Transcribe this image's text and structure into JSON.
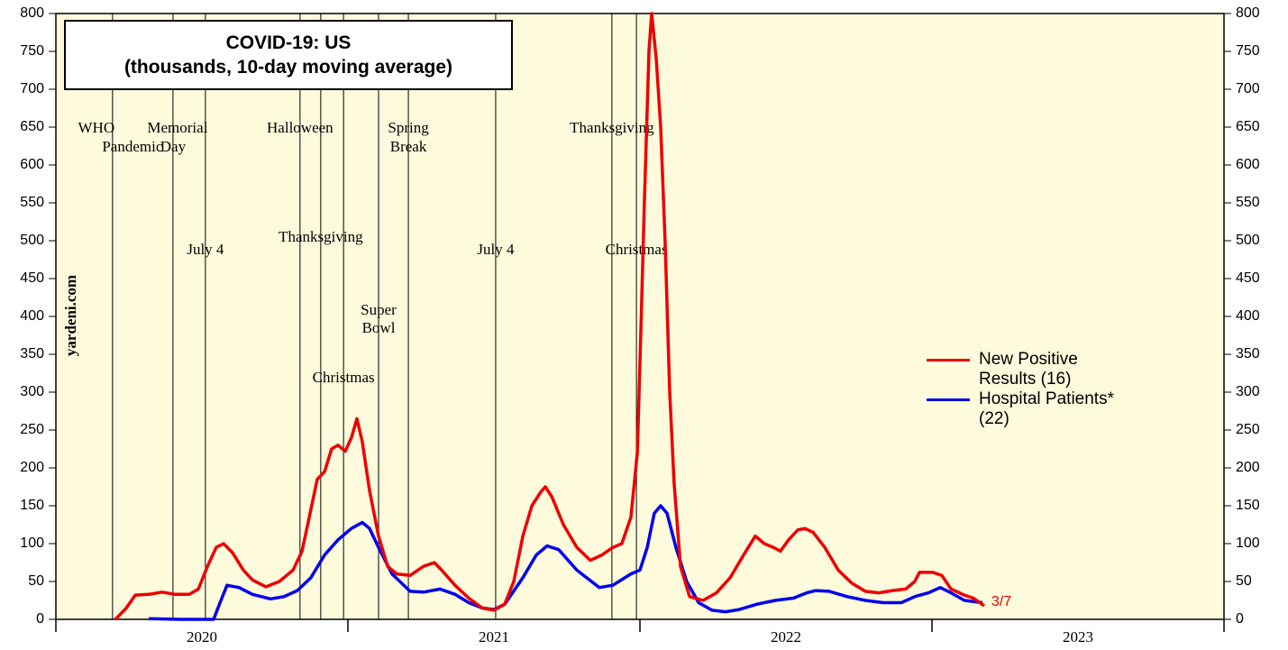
{
  "chart_data": {
    "type": "line",
    "title": "COVID-19: US",
    "subtitle": "(thousands, 10-day moving average)",
    "source": "yardeni.com",
    "end_label": "3/7",
    "xlim": [
      2020,
      2024
    ],
    "xticks": [
      2020,
      2021,
      2022,
      2023,
      2024
    ],
    "xtick_labels": [
      {
        "value": 2020.5,
        "label": "2020"
      },
      {
        "value": 2021.5,
        "label": "2021"
      },
      {
        "value": 2022.5,
        "label": "2022"
      },
      {
        "value": 2023.5,
        "label": "2023"
      }
    ],
    "ylim": [
      0,
      800
    ],
    "yticks": [
      0,
      50,
      100,
      150,
      200,
      250,
      300,
      350,
      400,
      450,
      500,
      550,
      600,
      650,
      700,
      750,
      800
    ],
    "background": "#fdfbdc",
    "events": [
      {
        "x": 2020.194,
        "label": [
          "WHO",
          "Pandemic"
        ]
      },
      {
        "x": 2020.401,
        "label": [
          "Memorial",
          "Day"
        ]
      },
      {
        "x": 2020.512,
        "label": [
          "July 4"
        ]
      },
      {
        "x": 2020.836,
        "label": [
          "Halloween"
        ]
      },
      {
        "x": 2020.907,
        "label": [
          "Thanksgiving"
        ]
      },
      {
        "x": 2020.985,
        "label": [
          "Christmas"
        ]
      },
      {
        "x": 2021.105,
        "label": [
          "Super",
          "Bowl"
        ]
      },
      {
        "x": 2021.207,
        "label": [
          "Spring",
          "Break"
        ]
      },
      {
        "x": 2021.506,
        "label": [
          "July 4"
        ]
      },
      {
        "x": 2021.904,
        "label": [
          "Thanksgiving"
        ]
      },
      {
        "x": 2021.988,
        "label": [
          "Christmas"
        ]
      }
    ],
    "series": [
      {
        "name": "New Positive Results (16)",
        "color": "#ee0000",
        "x": [
          2020.204,
          2020.241,
          2020.272,
          2020.318,
          2020.364,
          2020.41,
          2020.457,
          2020.488,
          2020.519,
          2020.549,
          2020.574,
          2020.605,
          2020.642,
          2020.673,
          2020.719,
          2020.765,
          2020.812,
          2020.843,
          2020.873,
          2020.895,
          2020.92,
          2020.944,
          2020.966,
          2020.991,
          2021.012,
          2021.031,
          2021.049,
          2021.074,
          2021.105,
          2021.136,
          2021.167,
          2021.213,
          2021.259,
          2021.296,
          2021.321,
          2021.367,
          2021.414,
          2021.46,
          2021.5,
          2021.537,
          2021.568,
          2021.599,
          2021.63,
          2021.66,
          2021.676,
          2021.698,
          2021.738,
          2021.784,
          2021.83,
          2021.87,
          2021.907,
          2021.938,
          2021.969,
          2021.991,
          2022.003,
          2022.015,
          2022.031,
          2022.04,
          2022.056,
          2022.071,
          2022.086,
          2022.102,
          2022.117,
          2022.139,
          2022.17,
          2022.216,
          2022.262,
          2022.309,
          2022.355,
          2022.395,
          2022.426,
          2022.457,
          2022.481,
          2022.509,
          2022.54,
          2022.565,
          2022.593,
          2022.633,
          2022.679,
          2022.725,
          2022.772,
          2022.818,
          2022.864,
          2022.91,
          2022.941,
          2022.957,
          2023.003,
          2023.034,
          2023.065,
          2023.111,
          2023.142,
          2023.179
        ],
        "values": [
          0,
          15,
          32,
          33,
          36,
          33,
          33,
          40,
          70,
          95,
          100,
          88,
          65,
          52,
          43,
          50,
          65,
          90,
          145,
          185,
          195,
          225,
          230,
          222,
          240,
          265,
          235,
          170,
          110,
          70,
          60,
          58,
          70,
          75,
          65,
          45,
          28,
          15,
          12,
          20,
          50,
          110,
          150,
          168,
          175,
          162,
          125,
          95,
          78,
          85,
          95,
          100,
          135,
          220,
          380,
          550,
          750,
          800,
          740,
          650,
          500,
          300,
          180,
          70,
          30,
          25,
          35,
          55,
          85,
          110,
          100,
          95,
          90,
          105,
          118,
          120,
          115,
          95,
          65,
          48,
          37,
          35,
          38,
          40,
          50,
          62,
          62,
          58,
          40,
          32,
          28,
          18
        ]
      },
      {
        "name": "Hospital Patients* (22)",
        "color": "#0000ee",
        "x": [
          2020.318,
          2020.426,
          2020.54,
          2020.565,
          2020.586,
          2020.627,
          2020.673,
          2020.735,
          2020.781,
          2020.827,
          2020.873,
          2020.92,
          2020.966,
          2021.012,
          2021.049,
          2021.074,
          2021.105,
          2021.151,
          2021.213,
          2021.259,
          2021.315,
          2021.367,
          2021.414,
          2021.46,
          2021.5,
          2021.537,
          2021.599,
          2021.645,
          2021.682,
          2021.722,
          2021.784,
          2021.861,
          2021.907,
          2021.969,
          2022.0,
          2022.025,
          2022.049,
          2022.071,
          2022.093,
          2022.123,
          2022.16,
          2022.201,
          2022.247,
          2022.293,
          2022.34,
          2022.401,
          2022.463,
          2022.525,
          2022.571,
          2022.602,
          2022.648,
          2022.71,
          2022.772,
          2022.833,
          2022.895,
          2022.941,
          2022.988,
          2023.028,
          2023.065,
          2023.111,
          2023.173
        ],
        "values": [
          1,
          0,
          0,
          25,
          45,
          42,
          33,
          27,
          30,
          38,
          55,
          85,
          105,
          120,
          128,
          120,
          95,
          60,
          37,
          36,
          40,
          33,
          22,
          15,
          13,
          20,
          55,
          85,
          97,
          92,
          65,
          42,
          45,
          60,
          65,
          95,
          140,
          150,
          140,
          95,
          50,
          22,
          12,
          10,
          13,
          20,
          25,
          28,
          35,
          38,
          37,
          30,
          25,
          22,
          22,
          30,
          35,
          42,
          35,
          25,
          22
        ]
      }
    ]
  }
}
